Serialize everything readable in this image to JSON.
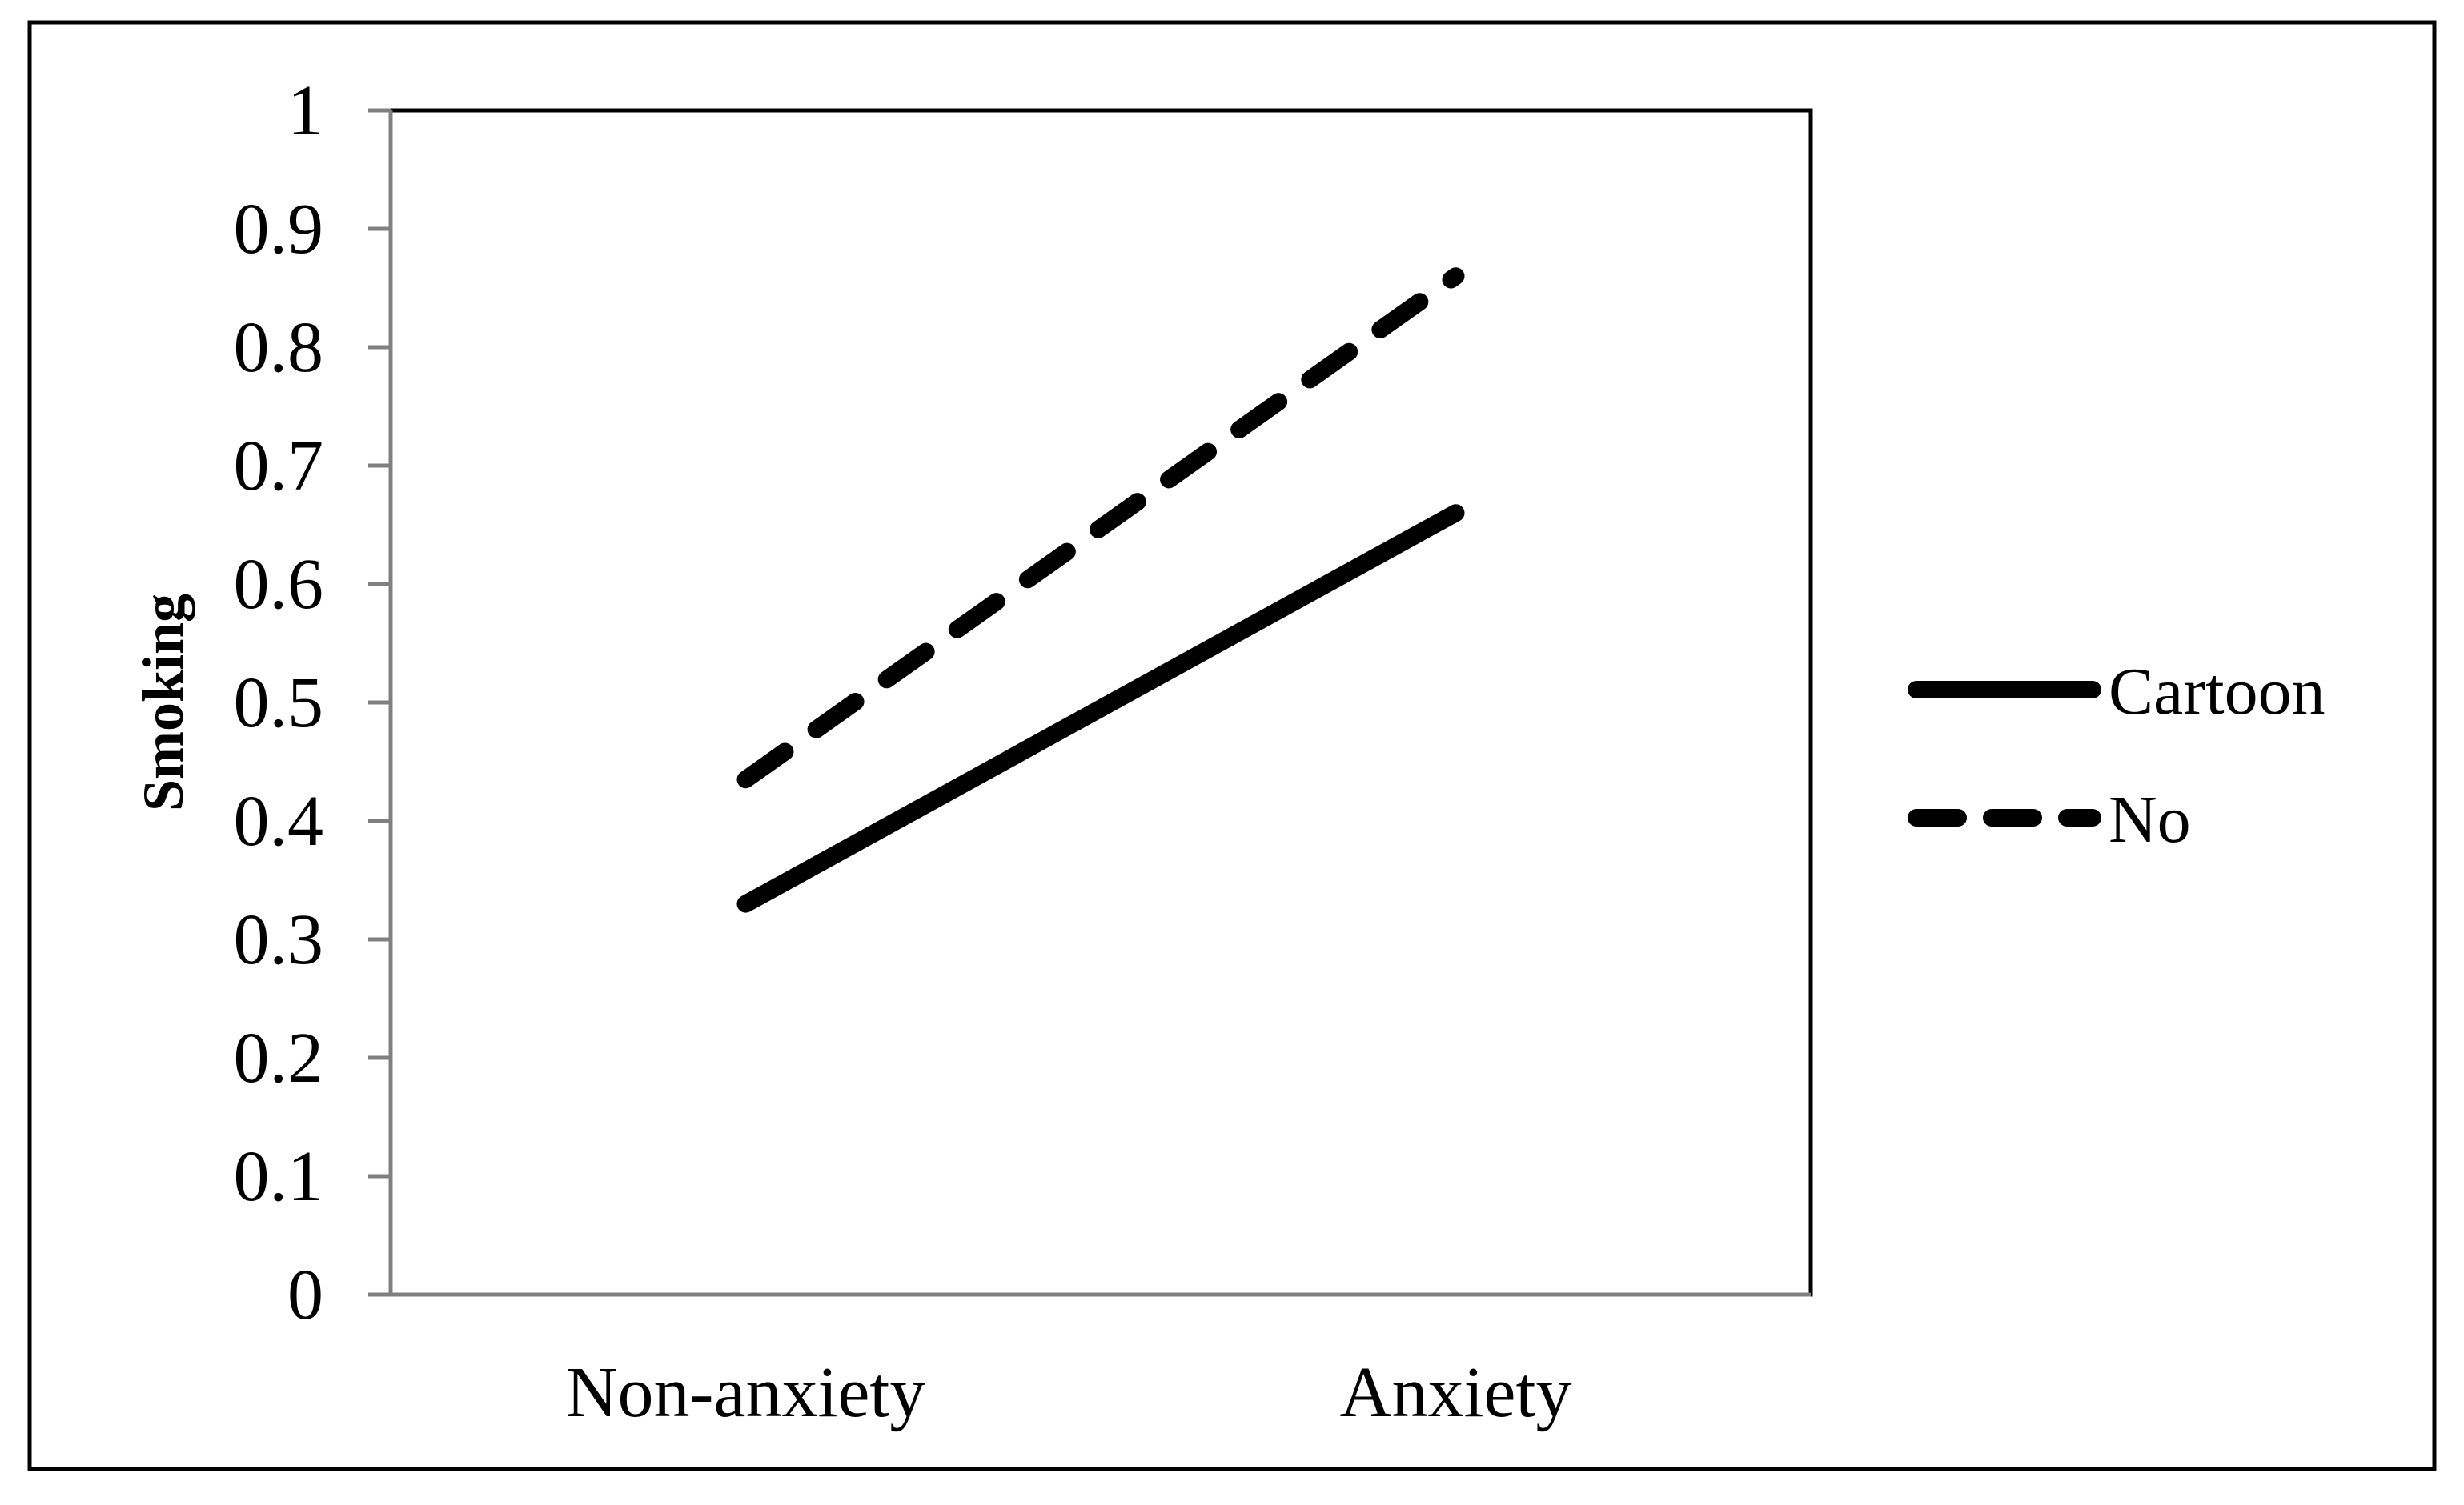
{
  "chart_data": {
    "type": "line",
    "title": "",
    "xlabel": "",
    "ylabel": "Smoking",
    "categories": [
      "Non-anxiety",
      "Anxiety"
    ],
    "ylim": [
      0,
      1
    ],
    "yticks": [
      "0",
      "0.1",
      "0.2",
      "0.3",
      "0.4",
      "0.5",
      "0.6",
      "0.7",
      "0.8",
      "0.9",
      "1"
    ],
    "grid": false,
    "legend_position": "right",
    "series": [
      {
        "name": "Cartoon",
        "values": [
          0.33,
          0.66
        ],
        "style": "solid",
        "color": "#000000"
      },
      {
        "name": "No",
        "values": [
          0.435,
          0.86
        ],
        "style": "dashed",
        "color": "#000000"
      }
    ]
  }
}
